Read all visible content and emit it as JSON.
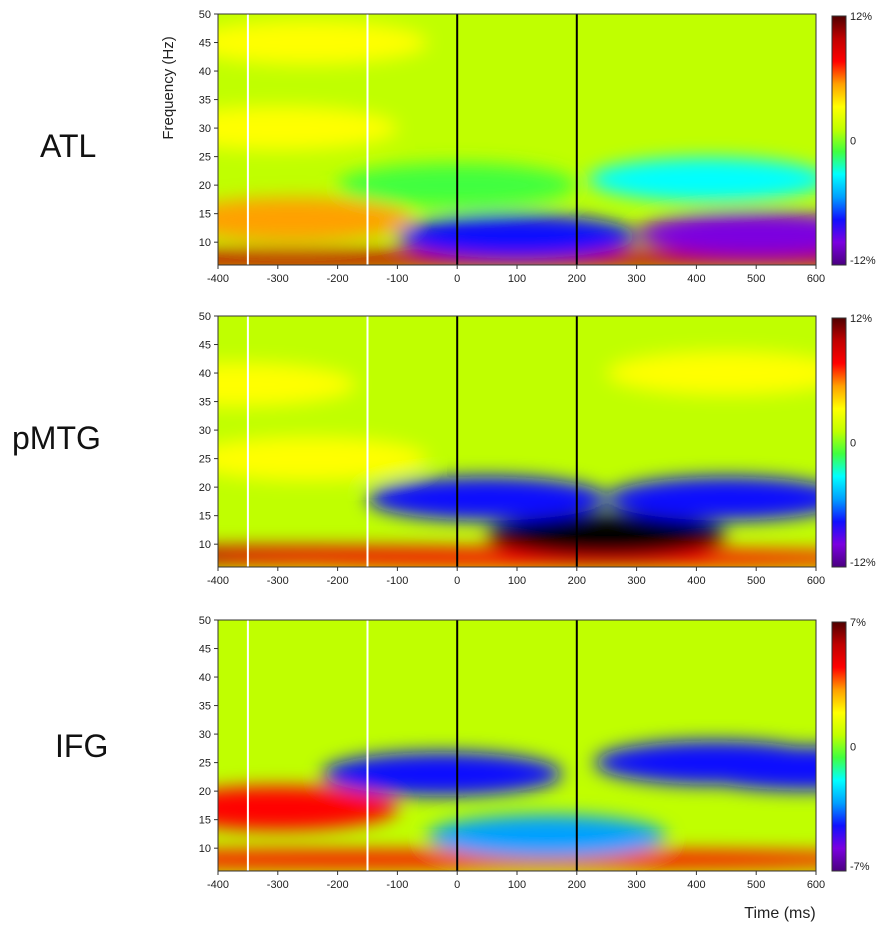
{
  "x_axis_label": "Time (ms)",
  "y_axis_label": "Frequency (Hz)",
  "colorscale": [
    "#4a0080",
    "#7b00e0",
    "#1010ff",
    "#00a0ff",
    "#00ffff",
    "#40ff40",
    "#c0ff00",
    "#ffff00",
    "#ffa000",
    "#ff0000",
    "#c00000",
    "#500000"
  ],
  "panels": [
    {
      "label": "ATL",
      "colorbar": {
        "max": "12%",
        "mid": "0",
        "min": "-12%"
      }
    },
    {
      "label": "pMTG",
      "colorbar": {
        "max": "12%",
        "mid": "0",
        "min": "-12%"
      }
    },
    {
      "label": "IFG",
      "colorbar": {
        "max": "7%",
        "mid": "0",
        "min": "-7%"
      }
    }
  ],
  "chart_data": [
    {
      "type": "heatmap",
      "panel": "ATL",
      "x_range": [
        -400,
        600
      ],
      "y_range": [
        6,
        50
      ],
      "x_ticks": [
        "-400",
        "-300",
        "-200",
        "-100",
        "0",
        "100",
        "200",
        "300",
        "400",
        "500",
        "600"
      ],
      "y_ticks": [
        "10",
        "15",
        "20",
        "25",
        "30",
        "35",
        "40",
        "45",
        "50"
      ],
      "colorbar_range_percent": [
        -12,
        12
      ],
      "marker_lines": [
        {
          "time": -350,
          "color": "#ffffff"
        },
        {
          "time": -150,
          "color": "#ffffff"
        },
        {
          "time": 0,
          "color": "#000000"
        },
        {
          "time": 200,
          "color": "#000000"
        }
      ],
      "features": [
        {
          "t": -275,
          "f": 14,
          "value": 5
        },
        {
          "t": -300,
          "f": 30,
          "value": 3
        },
        {
          "t": -250,
          "f": 45,
          "value": 3
        },
        {
          "t": -300,
          "f": 7,
          "value": 9
        },
        {
          "t": 100,
          "f": 7,
          "value": 9
        },
        {
          "t": 450,
          "f": 7,
          "value": 9
        },
        {
          "t": 100,
          "f": 11,
          "value": -7
        },
        {
          "t": 500,
          "f": 11.5,
          "value": -10
        },
        {
          "t": 420,
          "f": 21,
          "value": -4
        },
        {
          "t": 0,
          "f": 20,
          "value": -2
        }
      ]
    },
    {
      "type": "heatmap",
      "panel": "pMTG",
      "x_range": [
        -400,
        600
      ],
      "y_range": [
        6,
        50
      ],
      "x_ticks": [
        "-400",
        "-300",
        "-200",
        "-100",
        "0",
        "100",
        "200",
        "300",
        "400",
        "500",
        "600"
      ],
      "y_ticks": [
        "10",
        "15",
        "20",
        "25",
        "30",
        "35",
        "40",
        "45",
        "50"
      ],
      "colorbar_range_percent": [
        -12,
        12
      ],
      "marker_lines": [
        {
          "time": -350,
          "color": "#ffffff"
        },
        {
          "time": -150,
          "color": "#ffffff"
        },
        {
          "time": 0,
          "color": "#000000"
        },
        {
          "time": 200,
          "color": "#000000"
        }
      ],
      "features": [
        {
          "t": -370,
          "f": 38,
          "value": 4
        },
        {
          "t": -250,
          "f": 25,
          "value": 4
        },
        {
          "t": 450,
          "f": 40,
          "value": 3
        },
        {
          "t": -300,
          "f": 8,
          "value": 9
        },
        {
          "t": 200,
          "f": 7.5,
          "value": 8
        },
        {
          "t": 250,
          "f": 11.5,
          "value": -16
        },
        {
          "t": 50,
          "f": 18,
          "value": -7
        },
        {
          "t": 450,
          "f": 18,
          "value": -7
        }
      ]
    },
    {
      "type": "heatmap",
      "panel": "IFG",
      "x_range": [
        -400,
        600
      ],
      "y_range": [
        6,
        50
      ],
      "x_ticks": [
        "-400",
        "-300",
        "-200",
        "-100",
        "0",
        "100",
        "200",
        "300",
        "400",
        "500",
        "600"
      ],
      "y_ticks": [
        "10",
        "15",
        "20",
        "25",
        "30",
        "35",
        "40",
        "45",
        "50"
      ],
      "colorbar_range_percent": [
        -7,
        7
      ],
      "marker_lines": [
        {
          "time": -350,
          "color": "#ffffff"
        },
        {
          "time": -150,
          "color": "#ffffff"
        },
        {
          "time": 0,
          "color": "#000000"
        },
        {
          "time": 200,
          "color": "#000000"
        }
      ],
      "features": [
        {
          "t": -300,
          "f": 17,
          "value": 4
        },
        {
          "t": -200,
          "f": 8,
          "value": 5
        },
        {
          "t": 200,
          "f": 8,
          "value": 5
        },
        {
          "t": -25,
          "f": 23,
          "value": -5
        },
        {
          "t": 430,
          "f": 25,
          "value": -5
        },
        {
          "t": 580,
          "f": 24,
          "value": -4
        },
        {
          "t": 150,
          "f": 12,
          "value": -3
        }
      ]
    }
  ]
}
